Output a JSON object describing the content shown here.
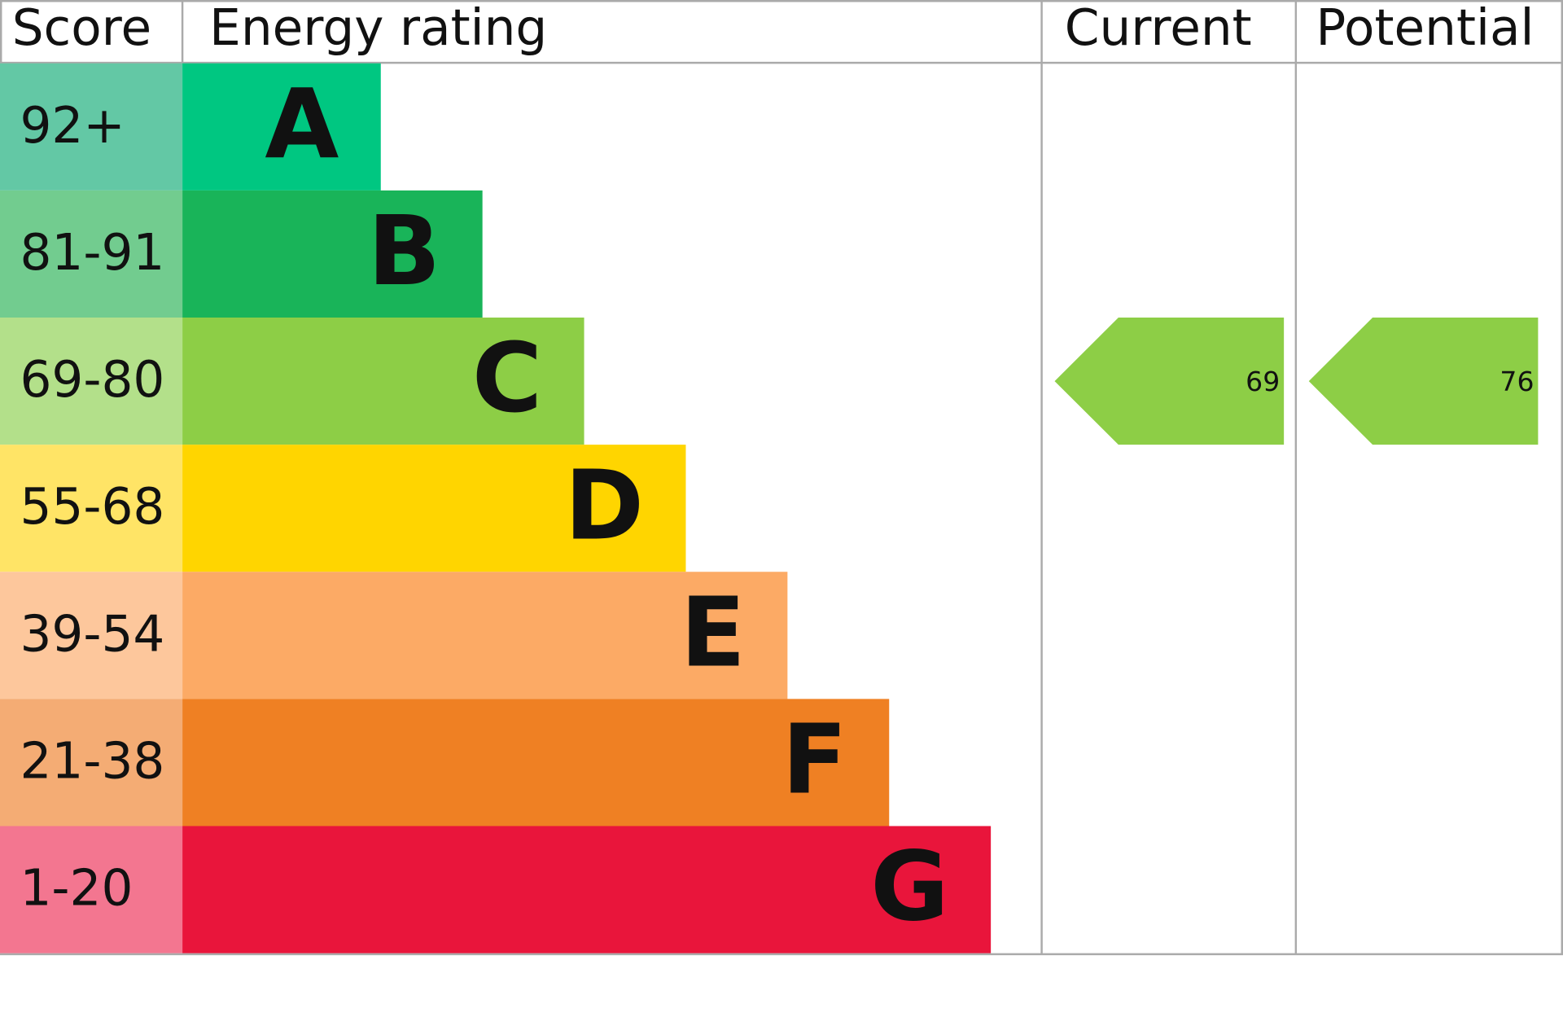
{
  "headers": {
    "score": "Score",
    "rating": "Energy rating",
    "current": "Current",
    "potential": "Potential"
  },
  "bands": [
    {
      "score": "92+",
      "letter": "A",
      "color": "#00c781",
      "score_color": "#63c8a5"
    },
    {
      "score": "81-91",
      "letter": "B",
      "color": "#19b459",
      "score_color": "#72cc8f"
    },
    {
      "score": "69-80",
      "letter": "C",
      "color": "#8dce46",
      "score_color": "#b3e08a"
    },
    {
      "score": "55-68",
      "letter": "D",
      "color": "#ffd500",
      "score_color": "#ffe466"
    },
    {
      "score": "39-54",
      "letter": "E",
      "color": "#fcaa65",
      "score_color": "#fdc79c"
    },
    {
      "score": "21-38",
      "letter": "F",
      "color": "#ef8023",
      "score_color": "#f4ac74"
    },
    {
      "score": "1-20",
      "letter": "G",
      "color": "#e9153b",
      "score_color": "#f37690"
    }
  ],
  "current": {
    "value": 69
  },
  "potential": {
    "value": 76
  }
}
